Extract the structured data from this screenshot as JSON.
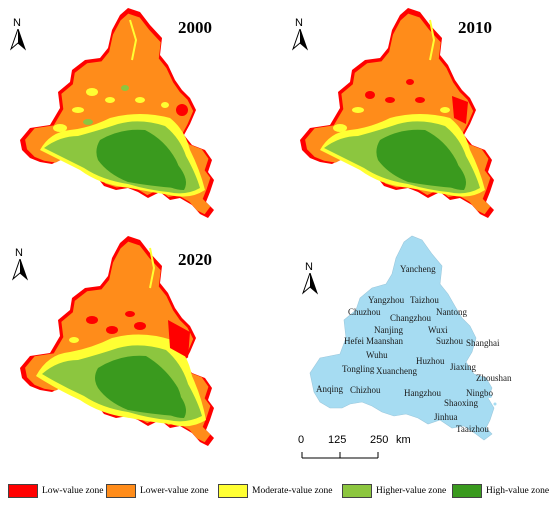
{
  "panels": [
    {
      "year": "2000"
    },
    {
      "year": "2010"
    },
    {
      "year": "2020"
    }
  ],
  "north_label": "N",
  "colors": {
    "low": "#ff0000",
    "lower": "#ff8c1a",
    "moderate": "#ffff33",
    "higher": "#8cc63f",
    "high": "#3a9a1e",
    "region": "#a6dcf2"
  },
  "cities": [
    "Yancheng",
    "Yangzhou",
    "Taizhou",
    "Chuzhou",
    "Changzhou",
    "Nantong",
    "Nanjing",
    "Wuxi",
    "Hefei",
    "Maanshan",
    "Suzhou",
    "Shanghai",
    "Wuhu",
    "Huzhou",
    "Tongling",
    "Xuancheng",
    "Jiaxing",
    "Zhoushan",
    "Anqing",
    "Chizhou",
    "Hangzhou",
    "Ningbo",
    "Shaoxing",
    "Jinhua",
    "Taaizhou"
  ],
  "scale": {
    "ticks": [
      "0",
      "125",
      "250"
    ],
    "unit": "km"
  },
  "legend": [
    {
      "label": "Low-value zone",
      "color": "#ff0000"
    },
    {
      "label": "Lower-value zone",
      "color": "#ff8c1a"
    },
    {
      "label": "Moderate-value zone",
      "color": "#ffff33"
    },
    {
      "label": "Higher-value zone",
      "color": "#8cc63f"
    },
    {
      "label": "High-value zone",
      "color": "#3a9a1e"
    }
  ]
}
